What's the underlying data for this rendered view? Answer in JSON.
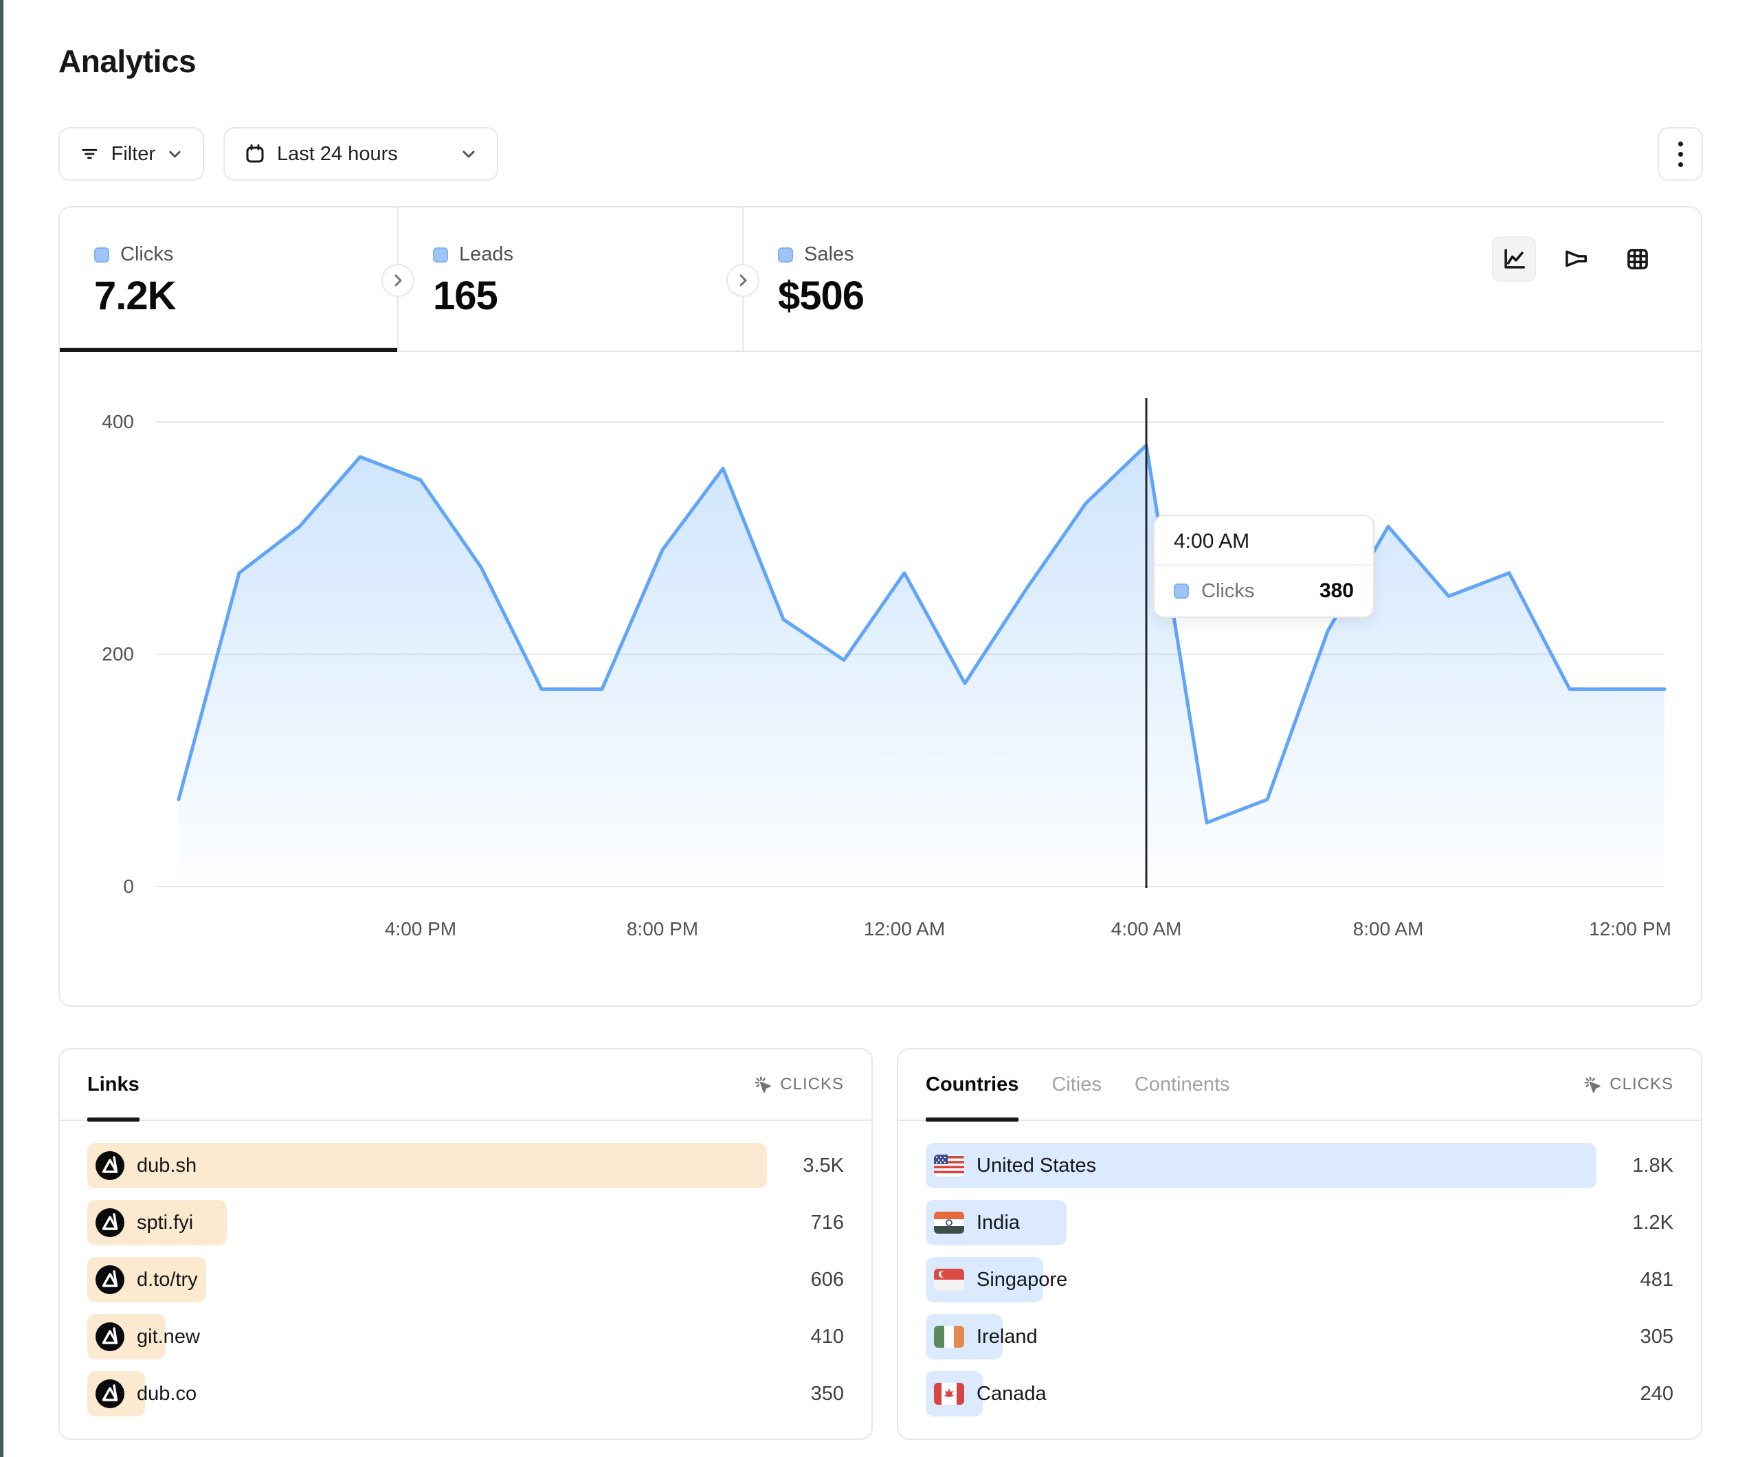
{
  "page": {
    "title": "Analytics"
  },
  "toolbar": {
    "filter_label": "Filter",
    "date_range_label": "Last 24 hours",
    "icons": [
      "filter-icon",
      "calendar-icon",
      "chevron-down-icon",
      "kebab-menu-icon"
    ]
  },
  "stats": [
    {
      "label": "Clicks",
      "value": "7.2K",
      "active": true
    },
    {
      "label": "Leads",
      "value": "165",
      "active": false
    },
    {
      "label": "Sales",
      "value": "$506",
      "active": false
    }
  ],
  "view_toggle": {
    "options": [
      "line-chart",
      "funnel",
      "table"
    ],
    "active": "line-chart"
  },
  "colors": {
    "accent_line": "#60a5fa",
    "legend_square": "#9ec5f8",
    "links_bar": "#fbe9d0",
    "countries_bar": "#dbeafe",
    "border": "#e7e7e7"
  },
  "chart_data": {
    "type": "area",
    "title": "Clicks over last 24 hours",
    "series_name": "Clicks",
    "x": [
      "12:00 PM",
      "1:00 PM",
      "2:00 PM",
      "3:00 PM",
      "4:00 PM",
      "5:00 PM",
      "6:00 PM",
      "7:00 PM",
      "8:00 PM",
      "9:00 PM",
      "10:00 PM",
      "11:00 PM",
      "12:00 AM",
      "1:00 AM",
      "2:00 AM",
      "3:00 AM",
      "4:00 AM",
      "5:00 AM",
      "6:00 AM",
      "7:00 AM",
      "8:00 AM",
      "9:00 AM",
      "10:00 AM",
      "11:00 AM",
      "12:00 PM"
    ],
    "values": [
      75,
      270,
      310,
      370,
      350,
      275,
      170,
      170,
      290,
      360,
      230,
      195,
      270,
      175,
      255,
      330,
      380,
      55,
      75,
      220,
      310,
      250,
      270,
      170,
      170
    ],
    "ylim": [
      0,
      400
    ],
    "yticks": [
      "0",
      "200",
      "400"
    ],
    "xticks": [
      {
        "index": 4,
        "label": "4:00 PM"
      },
      {
        "index": 8,
        "label": "8:00 PM"
      },
      {
        "index": 12,
        "label": "12:00 AM"
      },
      {
        "index": 16,
        "label": "4:00 AM"
      },
      {
        "index": 20,
        "label": "8:00 AM"
      },
      {
        "index": 24,
        "label": "12:00 PM"
      }
    ],
    "grid": "horizontal",
    "legend_position": "none",
    "tooltip": {
      "title": "4:00 AM",
      "series": "Clicks",
      "value": "380",
      "point_index": 16
    }
  },
  "links_panel": {
    "tabs": [
      {
        "label": "Links",
        "active": true
      }
    ],
    "metric_label": "CLICKS",
    "rows": [
      {
        "label": "dub.sh",
        "value": "3.5K",
        "bar_pct": 100,
        "icon": "dub-logo-icon"
      },
      {
        "label": "spti.fyi",
        "value": "716",
        "bar_pct": 20.5,
        "icon": "dub-logo-icon"
      },
      {
        "label": "d.to/try",
        "value": "606",
        "bar_pct": 17.5,
        "icon": "dub-logo-icon"
      },
      {
        "label": "git.new",
        "value": "410",
        "bar_pct": 11.5,
        "icon": "dub-logo-icon"
      },
      {
        "label": "dub.co",
        "value": "350",
        "bar_pct": 8.5,
        "icon": "dub-logo-icon"
      }
    ]
  },
  "countries_panel": {
    "tabs": [
      {
        "label": "Countries",
        "active": true
      },
      {
        "label": "Cities",
        "active": false
      },
      {
        "label": "Continents",
        "active": false
      }
    ],
    "metric_label": "CLICKS",
    "rows": [
      {
        "label": "United States",
        "value": "1.8K",
        "bar_pct": 100,
        "flag": "us"
      },
      {
        "label": "India",
        "value": "1.2K",
        "bar_pct": 21,
        "flag": "in"
      },
      {
        "label": "Singapore",
        "value": "481",
        "bar_pct": 17.5,
        "flag": "sg"
      },
      {
        "label": "Ireland",
        "value": "305",
        "bar_pct": 11.5,
        "flag": "ie"
      },
      {
        "label": "Canada",
        "value": "240",
        "bar_pct": 8.5,
        "flag": "ca"
      }
    ]
  }
}
